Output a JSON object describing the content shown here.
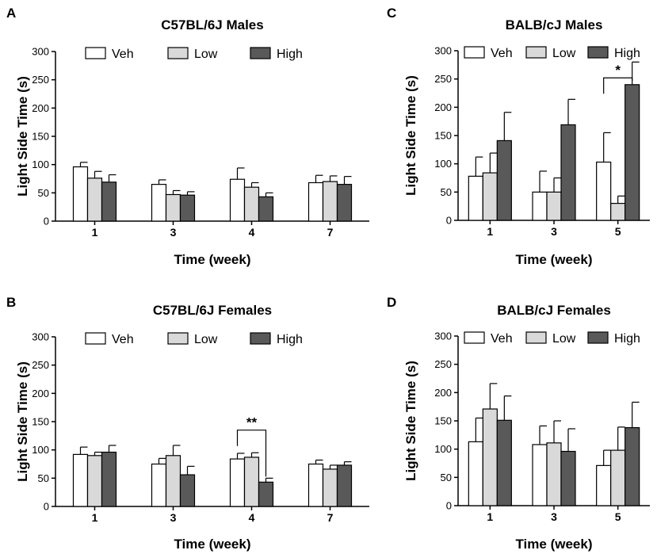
{
  "series_colors": {
    "Veh": "#ffffff",
    "Low": "#d9d9d9",
    "High": "#595959"
  },
  "chart_data": [
    {
      "panel": "A",
      "type": "bar",
      "title": "C57BL/6J Males",
      "xlabel": "Time (week)",
      "ylabel": "Light Side Time (s)",
      "ylim": [
        0,
        300
      ],
      "yticks": [
        "0",
        "50",
        "100",
        "150",
        "200",
        "250",
        "300"
      ],
      "categories": [
        "1",
        "3",
        "4",
        "7"
      ],
      "legend": [
        "Veh",
        "Low",
        "High"
      ],
      "series": [
        {
          "name": "Veh",
          "values": [
            96,
            65,
            74,
            68
          ],
          "errors": [
            8,
            8,
            20,
            13
          ]
        },
        {
          "name": "Low",
          "values": [
            76,
            47,
            60,
            70
          ],
          "errors": [
            12,
            7,
            8,
            10
          ]
        },
        {
          "name": "High",
          "values": [
            69,
            46,
            43,
            65
          ],
          "errors": [
            13,
            6,
            7,
            14
          ]
        }
      ],
      "significance": []
    },
    {
      "panel": "B",
      "type": "bar",
      "title": "C57BL/6J Females",
      "xlabel": "Time (week)",
      "ylabel": "Light Side Time (s)",
      "ylim": [
        0,
        300
      ],
      "yticks": [
        "0",
        "50",
        "100",
        "150",
        "200",
        "250",
        "300"
      ],
      "categories": [
        "1",
        "3",
        "4",
        "7"
      ],
      "legend": [
        "Veh",
        "Low",
        "High"
      ],
      "series": [
        {
          "name": "Veh",
          "values": [
            92,
            75,
            84,
            75
          ],
          "errors": [
            13,
            10,
            10,
            7
          ]
        },
        {
          "name": "Low",
          "values": [
            90,
            90,
            87,
            66
          ],
          "errors": [
            6,
            18,
            8,
            7
          ]
        },
        {
          "name": "High",
          "values": [
            96,
            56,
            43,
            73
          ],
          "errors": [
            12,
            15,
            7,
            6
          ]
        }
      ],
      "significance": [
        {
          "label": "**",
          "category": 2,
          "from": "Veh",
          "to": "High",
          "y": 135
        }
      ]
    },
    {
      "panel": "C",
      "type": "bar",
      "title": "BALB/cJ Males",
      "xlabel": "Time (week)",
      "ylabel": "Light Side Time (s)",
      "ylim": [
        0,
        300
      ],
      "yticks": [
        "0",
        "50",
        "100",
        "150",
        "200",
        "250",
        "300"
      ],
      "categories": [
        "1",
        "3",
        "5"
      ],
      "legend": [
        "Veh",
        "Low",
        "High"
      ],
      "series": [
        {
          "name": "Veh",
          "values": [
            78,
            50,
            103
          ],
          "errors": [
            34,
            37,
            52
          ]
        },
        {
          "name": "Low",
          "values": [
            84,
            50,
            30
          ],
          "errors": [
            35,
            25,
            13
          ]
        },
        {
          "name": "High",
          "values": [
            141,
            169,
            240
          ],
          "errors": [
            50,
            45,
            40
          ]
        }
      ],
      "significance": [
        {
          "label": "*",
          "category": 2,
          "from": "Veh",
          "to": "High",
          "y": 252
        }
      ]
    },
    {
      "panel": "D",
      "type": "bar",
      "title": "BALB/cJ Females",
      "xlabel": "Time (week)",
      "ylabel": "Light Side Time (s)",
      "ylim": [
        0,
        300
      ],
      "yticks": [
        "0",
        "50",
        "100",
        "150",
        "200",
        "250",
        "300"
      ],
      "categories": [
        "1",
        "3",
        "5"
      ],
      "legend": [
        "Veh",
        "Low",
        "High"
      ],
      "series": [
        {
          "name": "Veh",
          "values": [
            113,
            108,
            71
          ],
          "errors": [
            42,
            33,
            27
          ]
        },
        {
          "name": "Low",
          "values": [
            171,
            111,
            98
          ],
          "errors": [
            45,
            39,
            41
          ]
        },
        {
          "name": "High",
          "values": [
            151,
            96,
            138
          ],
          "errors": [
            43,
            40,
            45
          ]
        }
      ],
      "significance": []
    }
  ]
}
